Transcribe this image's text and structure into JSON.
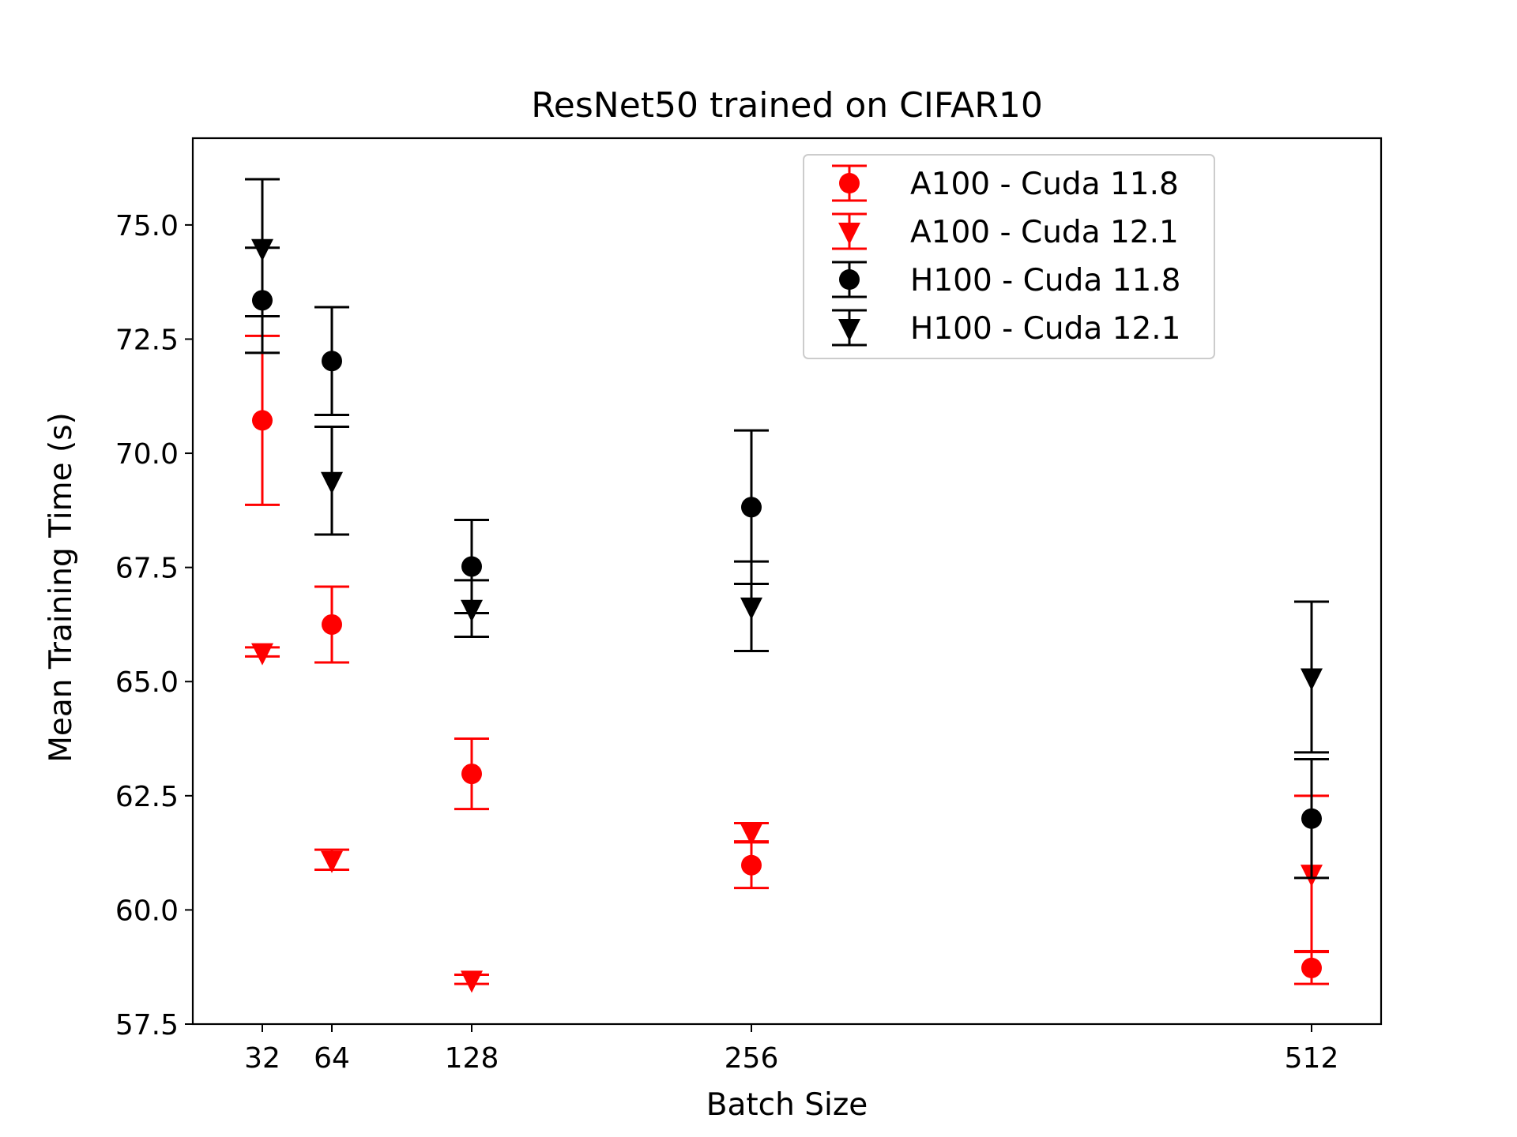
{
  "chart_data": {
    "type": "scatter",
    "title": "ResNet50 trained on CIFAR10",
    "xlabel": "Batch Size",
    "ylabel": "Mean Training Time (s)",
    "x": [
      32,
      64,
      128,
      256,
      512
    ],
    "xticks": [
      "32",
      "64",
      "128",
      "256",
      "512"
    ],
    "xlim": [
      0,
      576
    ],
    "yticks": [
      "57.5",
      "60.0",
      "62.5",
      "65.0",
      "67.5",
      "70.0",
      "72.5",
      "75.0"
    ],
    "ylim": [
      57.5,
      76.9
    ],
    "error_bars": true,
    "legend_position": "upper right",
    "series": [
      {
        "name": "A100 - Cuda 11.8",
        "color": "#ff0000",
        "marker": "circle",
        "values": [
          70.72,
          66.25,
          62.98,
          60.98,
          58.73
        ],
        "errors": [
          1.85,
          0.83,
          0.77,
          0.5,
          0.35
        ]
      },
      {
        "name": "A100 - Cuda 12.1",
        "color": "#ff0000",
        "marker": "triangle-down",
        "values": [
          65.65,
          61.1,
          58.48,
          61.7,
          60.8
        ],
        "errors": [
          0.1,
          0.22,
          0.1,
          0.2,
          1.7
        ]
      },
      {
        "name": "H100 - Cuda 11.8",
        "color": "#000000",
        "marker": "circle",
        "values": [
          73.35,
          72.02,
          67.52,
          68.82,
          62.0
        ],
        "errors": [
          1.15,
          1.18,
          1.02,
          1.68,
          1.3
        ]
      },
      {
        "name": "H100 - Cuda 12.1",
        "color": "#000000",
        "marker": "triangle-down",
        "values": [
          74.5,
          69.4,
          66.6,
          66.65,
          65.1
        ],
        "errors": [
          1.5,
          1.18,
          0.62,
          0.98,
          1.65
        ]
      }
    ]
  }
}
